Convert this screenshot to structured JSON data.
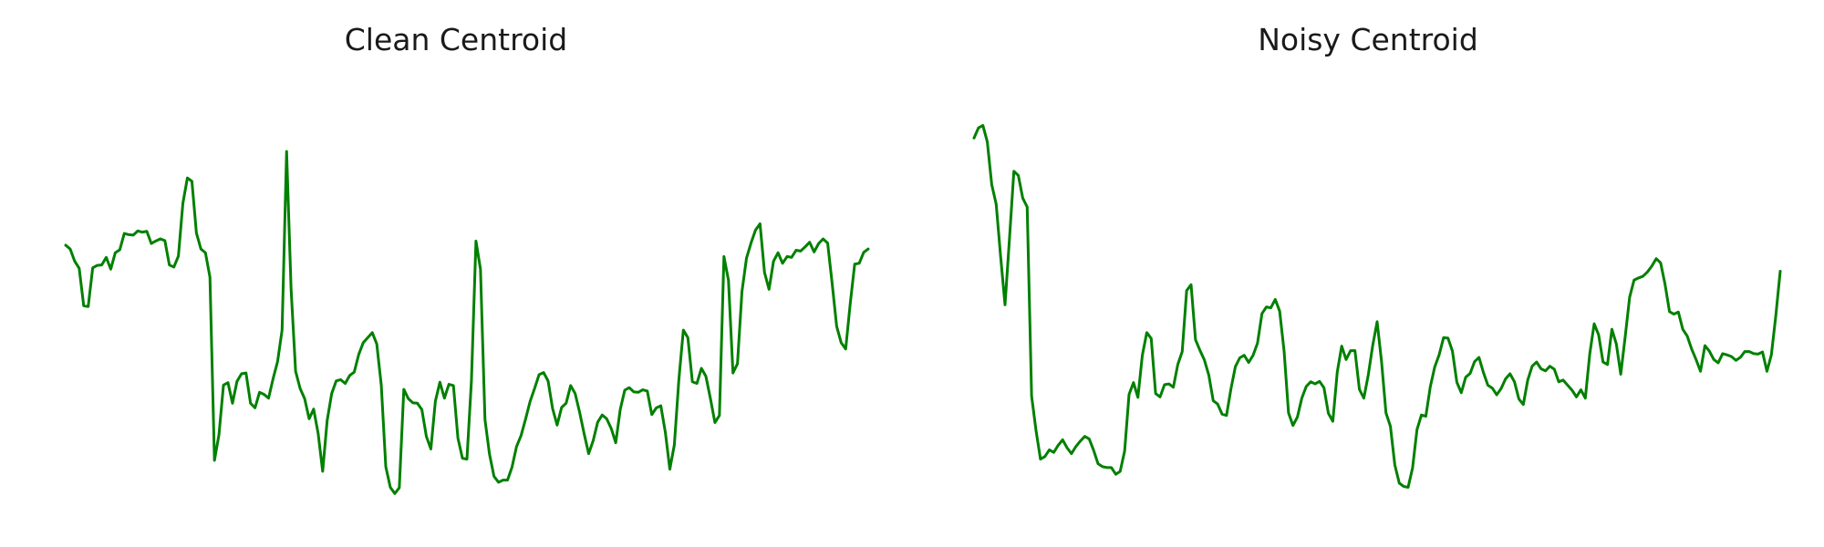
{
  "chart_data": [
    {
      "type": "line",
      "title": "Clean Centroid",
      "xlabel": "",
      "ylabel": "",
      "axis_visible": false,
      "grid": false,
      "color": "#008000",
      "ylim": [
        0,
        1
      ],
      "series": [
        {
          "values": [
            0.627,
            0.618,
            0.589,
            0.572,
            0.483,
            0.481,
            0.573,
            0.579,
            0.58,
            0.598,
            0.57,
            0.609,
            0.616,
            0.655,
            0.652,
            0.651,
            0.661,
            0.658,
            0.66,
            0.631,
            0.637,
            0.642,
            0.638,
            0.58,
            0.575,
            0.601,
            0.727,
            0.787,
            0.779,
            0.656,
            0.618,
            0.609,
            0.551,
            0.115,
            0.176,
            0.294,
            0.3,
            0.251,
            0.303,
            0.321,
            0.323,
            0.251,
            0.24,
            0.277,
            0.272,
            0.263,
            0.309,
            0.35,
            0.425,
            0.85,
            0.522,
            0.327,
            0.286,
            0.262,
            0.214,
            0.237,
            0.179,
            0.089,
            0.21,
            0.274,
            0.304,
            0.307,
            0.298,
            0.317,
            0.325,
            0.367,
            0.395,
            0.407,
            0.419,
            0.392,
            0.294,
            0.1,
            0.051,
            0.036,
            0.05,
            0.284,
            0.262,
            0.252,
            0.251,
            0.236,
            0.172,
            0.142,
            0.256,
            0.301,
            0.263,
            0.296,
            0.293,
            0.168,
            0.12,
            0.118,
            0.305,
            0.637,
            0.57,
            0.212,
            0.13,
            0.077,
            0.063,
            0.068,
            0.068,
            0.099,
            0.148,
            0.174,
            0.213,
            0.255,
            0.286,
            0.319,
            0.324,
            0.304,
            0.238,
            0.199,
            0.241,
            0.251,
            0.293,
            0.274,
            0.229,
            0.178,
            0.131,
            0.162,
            0.206,
            0.223,
            0.214,
            0.191,
            0.157,
            0.236,
            0.282,
            0.288,
            0.278,
            0.277,
            0.283,
            0.28,
            0.224,
            0.24,
            0.245,
            0.182,
            0.094,
            0.152,
            0.307,
            0.425,
            0.407,
            0.302,
            0.298,
            0.334,
            0.315,
            0.262,
            0.205,
            0.222,
            0.6,
            0.544,
            0.323,
            0.345,
            0.517,
            0.596,
            0.632,
            0.663,
            0.678,
            0.562,
            0.522,
            0.589,
            0.609,
            0.584,
            0.6,
            0.598,
            0.615,
            0.613,
            0.623,
            0.634,
            0.611,
            0.631,
            0.642,
            0.632,
            0.536,
            0.434,
            0.395,
            0.38,
            0.487,
            0.582,
            0.584,
            0.61,
            0.618
          ]
        }
      ]
    },
    {
      "type": "line",
      "title": "Noisy Centroid",
      "xlabel": "",
      "ylabel": "",
      "axis_visible": false,
      "grid": false,
      "color": "#008000",
      "ylim": [
        0,
        1
      ],
      "series": [
        {
          "values": [
            0.882,
            0.906,
            0.912,
            0.873,
            0.771,
            0.725,
            0.601,
            0.485,
            0.642,
            0.803,
            0.793,
            0.739,
            0.718,
            0.268,
            0.186,
            0.118,
            0.124,
            0.14,
            0.134,
            0.151,
            0.164,
            0.145,
            0.131,
            0.148,
            0.161,
            0.172,
            0.166,
            0.139,
            0.107,
            0.1,
            0.098,
            0.098,
            0.082,
            0.089,
            0.137,
            0.272,
            0.3,
            0.265,
            0.365,
            0.419,
            0.405,
            0.274,
            0.266,
            0.295,
            0.297,
            0.289,
            0.343,
            0.374,
            0.519,
            0.533,
            0.402,
            0.377,
            0.354,
            0.318,
            0.257,
            0.249,
            0.225,
            0.222,
            0.285,
            0.338,
            0.359,
            0.365,
            0.348,
            0.365,
            0.394,
            0.464,
            0.48,
            0.478,
            0.498,
            0.47,
            0.375,
            0.228,
            0.198,
            0.218,
            0.263,
            0.291,
            0.302,
            0.297,
            0.303,
            0.288,
            0.227,
            0.208,
            0.325,
            0.387,
            0.355,
            0.376,
            0.376,
            0.284,
            0.263,
            0.318,
            0.388,
            0.445,
            0.35,
            0.228,
            0.196,
            0.104,
            0.061,
            0.053,
            0.051,
            0.097,
            0.188,
            0.223,
            0.22,
            0.29,
            0.337,
            0.366,
            0.407,
            0.406,
            0.375,
            0.301,
            0.276,
            0.313,
            0.322,
            0.35,
            0.36,
            0.324,
            0.294,
            0.287,
            0.271,
            0.286,
            0.309,
            0.321,
            0.302,
            0.261,
            0.248,
            0.306,
            0.339,
            0.349,
            0.333,
            0.328,
            0.339,
            0.332,
            0.302,
            0.306,
            0.294,
            0.282,
            0.266,
            0.283,
            0.263,
            0.368,
            0.44,
            0.414,
            0.349,
            0.343,
            0.427,
            0.392,
            0.32,
            0.409,
            0.503,
            0.544,
            0.549,
            0.553,
            0.563,
            0.577,
            0.595,
            0.585,
            0.534,
            0.469,
            0.463,
            0.468,
            0.427,
            0.411,
            0.38,
            0.355,
            0.327,
            0.388,
            0.375,
            0.355,
            0.347,
            0.369,
            0.366,
            0.362,
            0.353,
            0.36,
            0.374,
            0.374,
            0.369,
            0.368,
            0.373,
            0.327,
            0.366,
            0.459,
            0.565
          ]
        }
      ]
    }
  ]
}
